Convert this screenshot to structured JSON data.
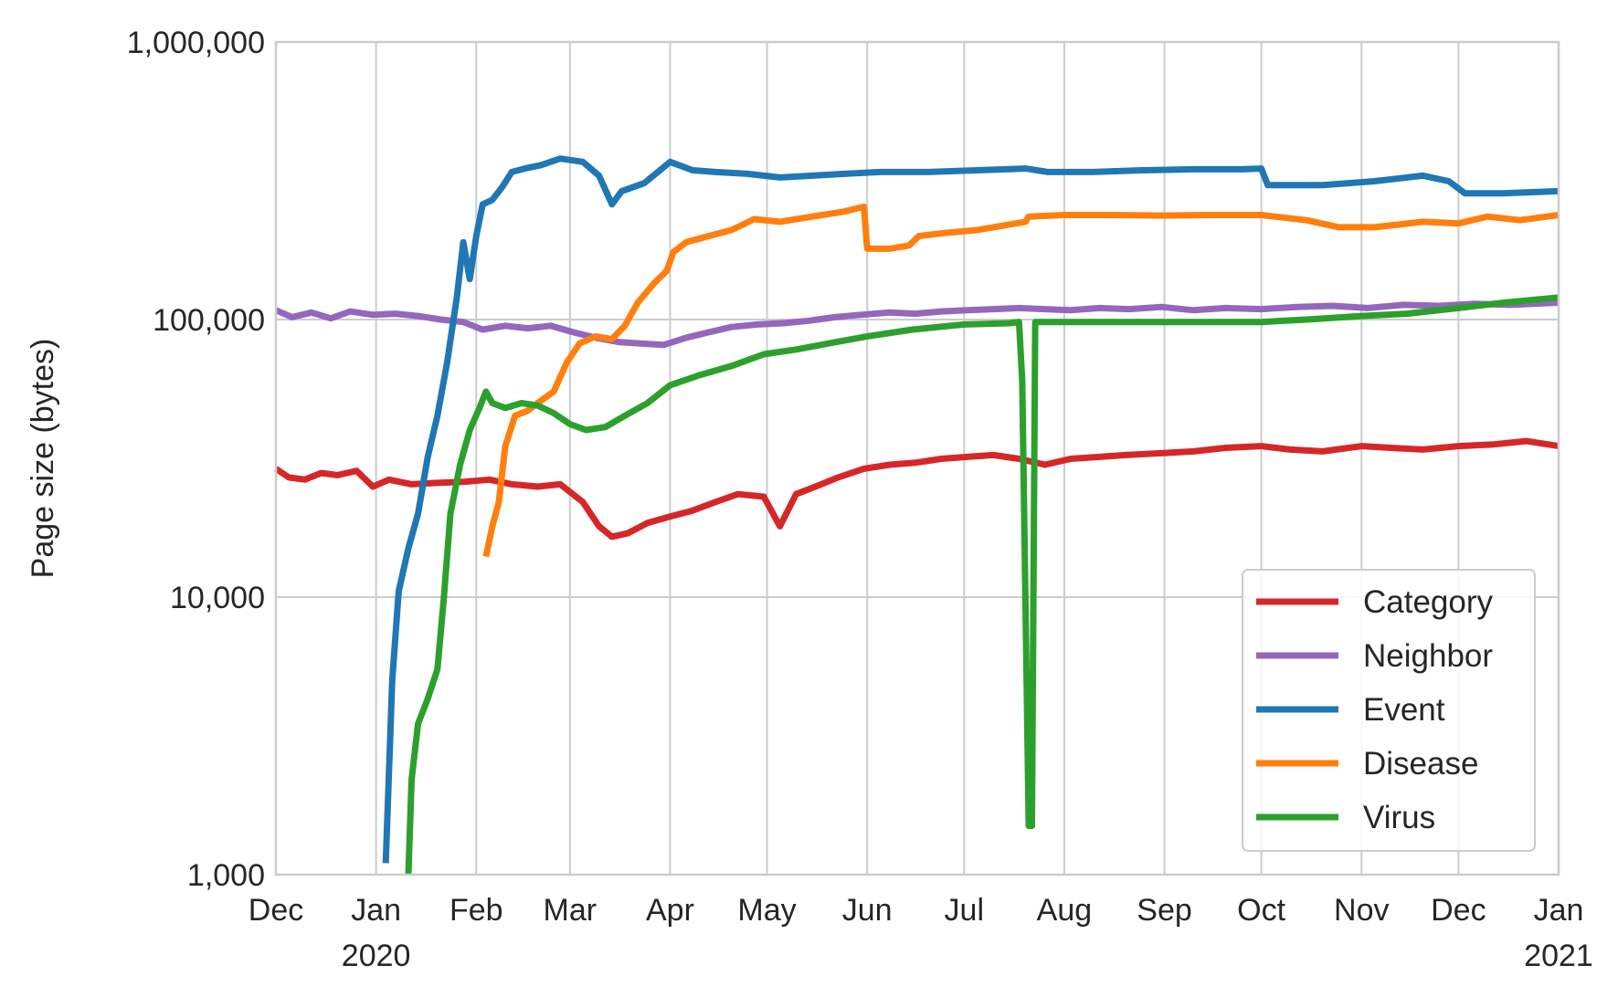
{
  "chart_data": {
    "type": "line",
    "ylabel": "Page size (bytes)",
    "yscale": "log",
    "ylim": [
      1000,
      1000000
    ],
    "xlim": [
      "2019-12-01",
      "2021-01-01"
    ],
    "grid": true,
    "legend_position": "lower-right",
    "y_ticks": [
      {
        "value": 1000,
        "label": "1,000"
      },
      {
        "value": 10000,
        "label": "10,000"
      },
      {
        "value": 100000,
        "label": "100,000"
      },
      {
        "value": 1000000,
        "label": "1,000,000"
      }
    ],
    "x_ticks": [
      {
        "date": "2019-12-01",
        "label": "Dec",
        "sublabel": ""
      },
      {
        "date": "2020-01-01",
        "label": "Jan",
        "sublabel": "2020"
      },
      {
        "date": "2020-02-01",
        "label": "Feb",
        "sublabel": ""
      },
      {
        "date": "2020-03-01",
        "label": "Mar",
        "sublabel": ""
      },
      {
        "date": "2020-04-01",
        "label": "Apr",
        "sublabel": ""
      },
      {
        "date": "2020-05-01",
        "label": "May",
        "sublabel": ""
      },
      {
        "date": "2020-06-01",
        "label": "Jun",
        "sublabel": ""
      },
      {
        "date": "2020-07-01",
        "label": "Jul",
        "sublabel": ""
      },
      {
        "date": "2020-08-01",
        "label": "Aug",
        "sublabel": ""
      },
      {
        "date": "2020-09-01",
        "label": "Sep",
        "sublabel": ""
      },
      {
        "date": "2020-10-01",
        "label": "Oct",
        "sublabel": ""
      },
      {
        "date": "2020-11-01",
        "label": "Nov",
        "sublabel": ""
      },
      {
        "date": "2020-12-01",
        "label": "Dec",
        "sublabel": ""
      },
      {
        "date": "2021-01-01",
        "label": "Jan",
        "sublabel": "2021"
      }
    ],
    "series": [
      {
        "name": "Category",
        "color": "#d62728",
        "points": [
          [
            "2019-12-01",
            29000
          ],
          [
            "2019-12-05",
            27000
          ],
          [
            "2019-12-10",
            26500
          ],
          [
            "2019-12-15",
            28000
          ],
          [
            "2019-12-20",
            27500
          ],
          [
            "2019-12-26",
            28500
          ],
          [
            "2019-12-31",
            25000
          ],
          [
            "2020-01-05",
            26500
          ],
          [
            "2020-01-12",
            25500
          ],
          [
            "2020-01-20",
            25800
          ],
          [
            "2020-01-28",
            26000
          ],
          [
            "2020-02-05",
            26500
          ],
          [
            "2020-02-12",
            25500
          ],
          [
            "2020-02-20",
            25000
          ],
          [
            "2020-02-27",
            25500
          ],
          [
            "2020-03-05",
            22000
          ],
          [
            "2020-03-10",
            18000
          ],
          [
            "2020-03-14",
            16500
          ],
          [
            "2020-03-19",
            17000
          ],
          [
            "2020-03-25",
            18500
          ],
          [
            "2020-04-01",
            19500
          ],
          [
            "2020-04-08",
            20500
          ],
          [
            "2020-04-15",
            22000
          ],
          [
            "2020-04-22",
            23500
          ],
          [
            "2020-04-30",
            23000
          ],
          [
            "2020-05-05",
            18000
          ],
          [
            "2020-05-10",
            23500
          ],
          [
            "2020-05-16",
            25000
          ],
          [
            "2020-05-23",
            27000
          ],
          [
            "2020-05-31",
            29000
          ],
          [
            "2020-06-08",
            30000
          ],
          [
            "2020-06-16",
            30500
          ],
          [
            "2020-06-24",
            31500
          ],
          [
            "2020-07-02",
            32000
          ],
          [
            "2020-07-10",
            32500
          ],
          [
            "2020-07-18",
            31500
          ],
          [
            "2020-07-26",
            30000
          ],
          [
            "2020-08-03",
            31500
          ],
          [
            "2020-08-12",
            32000
          ],
          [
            "2020-08-20",
            32500
          ],
          [
            "2020-08-31",
            33000
          ],
          [
            "2020-09-10",
            33500
          ],
          [
            "2020-09-20",
            34500
          ],
          [
            "2020-10-01",
            35000
          ],
          [
            "2020-10-10",
            34000
          ],
          [
            "2020-10-20",
            33500
          ],
          [
            "2020-11-01",
            35000
          ],
          [
            "2020-11-10",
            34500
          ],
          [
            "2020-11-20",
            34000
          ],
          [
            "2020-12-01",
            35000
          ],
          [
            "2020-12-12",
            35500
          ],
          [
            "2020-12-22",
            36500
          ],
          [
            "2021-01-01",
            35000
          ]
        ]
      },
      {
        "name": "Neighbor",
        "color": "#9467bd",
        "points": [
          [
            "2019-12-01",
            108000
          ],
          [
            "2019-12-06",
            102000
          ],
          [
            "2019-12-12",
            106000
          ],
          [
            "2019-12-18",
            101000
          ],
          [
            "2019-12-24",
            107000
          ],
          [
            "2019-12-31",
            104000
          ],
          [
            "2020-01-07",
            105000
          ],
          [
            "2020-01-14",
            103000
          ],
          [
            "2020-01-21",
            100000
          ],
          [
            "2020-01-28",
            98000
          ],
          [
            "2020-02-03",
            92000
          ],
          [
            "2020-02-10",
            95000
          ],
          [
            "2020-02-17",
            93000
          ],
          [
            "2020-02-24",
            95000
          ],
          [
            "2020-03-02",
            90000
          ],
          [
            "2020-03-09",
            86000
          ],
          [
            "2020-03-16",
            83000
          ],
          [
            "2020-03-23",
            82000
          ],
          [
            "2020-03-30",
            81000
          ],
          [
            "2020-04-06",
            86000
          ],
          [
            "2020-04-13",
            90000
          ],
          [
            "2020-04-20",
            94000
          ],
          [
            "2020-04-28",
            96000
          ],
          [
            "2020-05-06",
            97000
          ],
          [
            "2020-05-14",
            99000
          ],
          [
            "2020-05-22",
            102000
          ],
          [
            "2020-05-30",
            104000
          ],
          [
            "2020-06-08",
            106000
          ],
          [
            "2020-06-16",
            105000
          ],
          [
            "2020-06-24",
            107000
          ],
          [
            "2020-07-02",
            108000
          ],
          [
            "2020-07-10",
            109000
          ],
          [
            "2020-07-18",
            110000
          ],
          [
            "2020-07-26",
            109000
          ],
          [
            "2020-08-03",
            108000
          ],
          [
            "2020-08-12",
            110000
          ],
          [
            "2020-08-21",
            109000
          ],
          [
            "2020-08-31",
            111000
          ],
          [
            "2020-09-10",
            108000
          ],
          [
            "2020-09-20",
            110000
          ],
          [
            "2020-10-01",
            109000
          ],
          [
            "2020-10-12",
            111000
          ],
          [
            "2020-10-23",
            112000
          ],
          [
            "2020-11-03",
            110000
          ],
          [
            "2020-11-14",
            113000
          ],
          [
            "2020-11-25",
            112000
          ],
          [
            "2020-12-06",
            114000
          ],
          [
            "2020-12-17",
            113000
          ],
          [
            "2021-01-01",
            115000
          ]
        ]
      },
      {
        "name": "Event",
        "color": "#1f77b4",
        "points": [
          [
            "2020-01-04",
            1100
          ],
          [
            "2020-01-06",
            5000
          ],
          [
            "2020-01-08",
            10500
          ],
          [
            "2020-01-11",
            15000
          ],
          [
            "2020-01-14",
            20000
          ],
          [
            "2020-01-17",
            32000
          ],
          [
            "2020-01-20",
            45000
          ],
          [
            "2020-01-23",
            70000
          ],
          [
            "2020-01-26",
            120000
          ],
          [
            "2020-01-28",
            190000
          ],
          [
            "2020-01-30",
            140000
          ],
          [
            "2020-02-01",
            200000
          ],
          [
            "2020-02-03",
            260000
          ],
          [
            "2020-02-06",
            270000
          ],
          [
            "2020-02-09",
            300000
          ],
          [
            "2020-02-12",
            340000
          ],
          [
            "2020-02-16",
            350000
          ],
          [
            "2020-02-21",
            360000
          ],
          [
            "2020-02-27",
            380000
          ],
          [
            "2020-03-05",
            370000
          ],
          [
            "2020-03-10",
            330000
          ],
          [
            "2020-03-14",
            260000
          ],
          [
            "2020-03-17",
            290000
          ],
          [
            "2020-03-24",
            310000
          ],
          [
            "2020-04-01",
            370000
          ],
          [
            "2020-04-08",
            345000
          ],
          [
            "2020-04-15",
            340000
          ],
          [
            "2020-04-25",
            335000
          ],
          [
            "2020-05-05",
            325000
          ],
          [
            "2020-05-15",
            330000
          ],
          [
            "2020-05-25",
            335000
          ],
          [
            "2020-06-05",
            340000
          ],
          [
            "2020-06-20",
            340000
          ],
          [
            "2020-07-05",
            345000
          ],
          [
            "2020-07-20",
            350000
          ],
          [
            "2020-07-27",
            340000
          ],
          [
            "2020-08-10",
            340000
          ],
          [
            "2020-08-25",
            345000
          ],
          [
            "2020-09-10",
            348000
          ],
          [
            "2020-09-25",
            348000
          ],
          [
            "2020-10-01",
            350000
          ],
          [
            "2020-10-03",
            305000
          ],
          [
            "2020-10-20",
            305000
          ],
          [
            "2020-11-05",
            315000
          ],
          [
            "2020-11-20",
            330000
          ],
          [
            "2020-11-28",
            315000
          ],
          [
            "2020-12-03",
            285000
          ],
          [
            "2020-12-15",
            285000
          ],
          [
            "2021-01-01",
            290000
          ]
        ]
      },
      {
        "name": "Disease",
        "color": "#ff7f0e",
        "points": [
          [
            "2020-02-04",
            14000
          ],
          [
            "2020-02-06",
            18000
          ],
          [
            "2020-02-08",
            22000
          ],
          [
            "2020-02-10",
            35000
          ],
          [
            "2020-02-13",
            45000
          ],
          [
            "2020-02-17",
            47000
          ],
          [
            "2020-02-20",
            50000
          ],
          [
            "2020-02-25",
            55000
          ],
          [
            "2020-02-29",
            70000
          ],
          [
            "2020-03-04",
            82000
          ],
          [
            "2020-03-09",
            87000
          ],
          [
            "2020-03-14",
            85000
          ],
          [
            "2020-03-18",
            95000
          ],
          [
            "2020-03-22",
            115000
          ],
          [
            "2020-03-27",
            135000
          ],
          [
            "2020-03-31",
            150000
          ],
          [
            "2020-04-02",
            175000
          ],
          [
            "2020-04-06",
            190000
          ],
          [
            "2020-04-13",
            200000
          ],
          [
            "2020-04-20",
            210000
          ],
          [
            "2020-04-27",
            230000
          ],
          [
            "2020-05-05",
            225000
          ],
          [
            "2020-05-15",
            235000
          ],
          [
            "2020-05-25",
            245000
          ],
          [
            "2020-05-31",
            255000
          ],
          [
            "2020-06-01",
            180000
          ],
          [
            "2020-06-08",
            180000
          ],
          [
            "2020-06-14",
            185000
          ],
          [
            "2020-06-17",
            200000
          ],
          [
            "2020-06-25",
            205000
          ],
          [
            "2020-07-05",
            210000
          ],
          [
            "2020-07-15",
            220000
          ],
          [
            "2020-07-20",
            225000
          ],
          [
            "2020-07-21",
            235000
          ],
          [
            "2020-08-01",
            238000
          ],
          [
            "2020-08-15",
            238000
          ],
          [
            "2020-09-01",
            237000
          ],
          [
            "2020-09-15",
            238000
          ],
          [
            "2020-10-01",
            238000
          ],
          [
            "2020-10-15",
            228000
          ],
          [
            "2020-10-25",
            215000
          ],
          [
            "2020-11-05",
            215000
          ],
          [
            "2020-11-20",
            225000
          ],
          [
            "2020-12-01",
            222000
          ],
          [
            "2020-12-10",
            235000
          ],
          [
            "2020-12-20",
            228000
          ],
          [
            "2021-01-01",
            238000
          ]
        ]
      },
      {
        "name": "Virus",
        "color": "#2ca02c",
        "points": [
          [
            "2020-01-11",
            1000
          ],
          [
            "2020-01-12",
            2200
          ],
          [
            "2020-01-14",
            3500
          ],
          [
            "2020-01-17",
            4300
          ],
          [
            "2020-01-20",
            5500
          ],
          [
            "2020-01-22",
            10000
          ],
          [
            "2020-01-24",
            20000
          ],
          [
            "2020-01-27",
            30000
          ],
          [
            "2020-01-30",
            40000
          ],
          [
            "2020-02-02",
            48000
          ],
          [
            "2020-02-04",
            55000
          ],
          [
            "2020-02-06",
            50000
          ],
          [
            "2020-02-10",
            48000
          ],
          [
            "2020-02-15",
            50000
          ],
          [
            "2020-02-20",
            49000
          ],
          [
            "2020-02-25",
            46000
          ],
          [
            "2020-03-01",
            42000
          ],
          [
            "2020-03-06",
            40000
          ],
          [
            "2020-03-12",
            41000
          ],
          [
            "2020-03-18",
            45000
          ],
          [
            "2020-03-25",
            50000
          ],
          [
            "2020-04-01",
            58000
          ],
          [
            "2020-04-10",
            63000
          ],
          [
            "2020-04-20",
            68000
          ],
          [
            "2020-04-30",
            75000
          ],
          [
            "2020-05-10",
            78000
          ],
          [
            "2020-05-20",
            82000
          ],
          [
            "2020-06-01",
            87000
          ],
          [
            "2020-06-15",
            92000
          ],
          [
            "2020-07-01",
            96000
          ],
          [
            "2020-07-15",
            97000
          ],
          [
            "2020-07-18",
            98000
          ],
          [
            "2020-07-19",
            60000
          ],
          [
            "2020-07-21",
            1500
          ],
          [
            "2020-07-22",
            1500
          ],
          [
            "2020-07-23",
            98000
          ],
          [
            "2020-08-05",
            98000
          ],
          [
            "2020-08-25",
            98000
          ],
          [
            "2020-09-15",
            98000
          ],
          [
            "2020-10-01",
            98000
          ],
          [
            "2020-10-15",
            100000
          ],
          [
            "2020-11-01",
            103000
          ],
          [
            "2020-11-15",
            105000
          ],
          [
            "2020-12-01",
            110000
          ],
          [
            "2020-12-15",
            115000
          ],
          [
            "2021-01-01",
            120000
          ]
        ]
      }
    ],
    "legend_order": [
      "Category",
      "Neighbor",
      "Event",
      "Disease",
      "Virus"
    ]
  }
}
